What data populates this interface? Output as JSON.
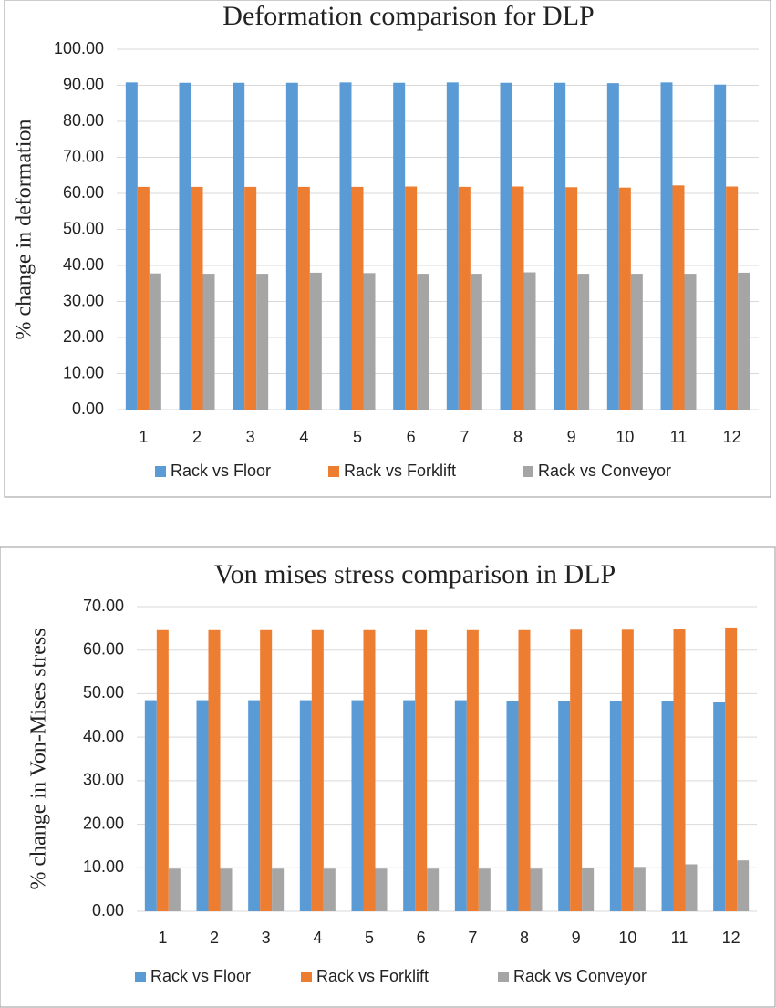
{
  "chart_data": [
    {
      "type": "bar",
      "title": "Deformation comparison for DLP",
      "y_label": "% change in deformation",
      "categories": [
        "1",
        "2",
        "3",
        "4",
        "5",
        "6",
        "7",
        "8",
        "9",
        "10",
        "11",
        "12"
      ],
      "series": [
        {
          "name": "Rack vs Floor",
          "color": "#5b9bd5",
          "values": [
            90.8,
            90.7,
            90.7,
            90.7,
            90.8,
            90.7,
            90.8,
            90.7,
            90.7,
            90.6,
            90.8,
            90.2
          ]
        },
        {
          "name": "Rack vs Forklift",
          "color": "#ed7d31",
          "values": [
            61.8,
            61.8,
            61.8,
            61.8,
            61.8,
            61.9,
            61.8,
            61.9,
            61.7,
            61.6,
            62.2,
            61.9
          ]
        },
        {
          "name": "Rack vs Conveyor",
          "color": "#a5a5a5",
          "values": [
            37.8,
            37.7,
            37.7,
            38.0,
            37.9,
            37.7,
            37.7,
            38.1,
            37.7,
            37.7,
            37.7,
            38.0
          ]
        }
      ],
      "ylim": [
        0,
        100
      ],
      "yticks": [
        {
          "value": 0,
          "label": "0.00"
        },
        {
          "value": 10,
          "label": "10.00"
        },
        {
          "value": 20,
          "label": "20.00"
        },
        {
          "value": 30,
          "label": "30.00"
        },
        {
          "value": 40,
          "label": "40.00"
        },
        {
          "value": 50,
          "label": "50.00"
        },
        {
          "value": 60,
          "label": "60.00"
        },
        {
          "value": 70,
          "label": "70.00"
        },
        {
          "value": 80,
          "label": "80.00"
        },
        {
          "value": 90,
          "label": "90.00"
        },
        {
          "value": 100,
          "label": "100.00"
        }
      ],
      "grid": true
    },
    {
      "type": "bar",
      "title": "Von mises stress comparison in DLP",
      "y_label": "% change in Von-Mises stress",
      "categories": [
        "1",
        "2",
        "3",
        "4",
        "5",
        "6",
        "7",
        "8",
        "9",
        "10",
        "11",
        "12"
      ],
      "series": [
        {
          "name": "Rack vs Floor",
          "color": "#5b9bd5",
          "values": [
            48.5,
            48.5,
            48.5,
            48.5,
            48.5,
            48.5,
            48.5,
            48.4,
            48.4,
            48.4,
            48.3,
            48.0
          ]
        },
        {
          "name": "Rack vs Forklift",
          "color": "#ed7d31",
          "values": [
            64.6,
            64.6,
            64.6,
            64.6,
            64.6,
            64.6,
            64.6,
            64.6,
            64.7,
            64.7,
            64.8,
            65.2
          ]
        },
        {
          "name": "Rack vs Conveyor",
          "color": "#a5a5a5",
          "values": [
            9.8,
            9.8,
            9.8,
            9.8,
            9.8,
            9.8,
            9.8,
            9.8,
            9.9,
            10.2,
            10.8,
            11.7
          ]
        }
      ],
      "ylim": [
        0,
        70
      ],
      "yticks": [
        {
          "value": 0,
          "label": "0.00"
        },
        {
          "value": 10,
          "label": "10.00"
        },
        {
          "value": 20,
          "label": "20.00"
        },
        {
          "value": 30,
          "label": "30.00"
        },
        {
          "value": 40,
          "label": "40.00"
        },
        {
          "value": 50,
          "label": "50.00"
        },
        {
          "value": 60,
          "label": "60.00"
        },
        {
          "value": 70,
          "label": "70.00"
        }
      ],
      "grid": true
    }
  ]
}
